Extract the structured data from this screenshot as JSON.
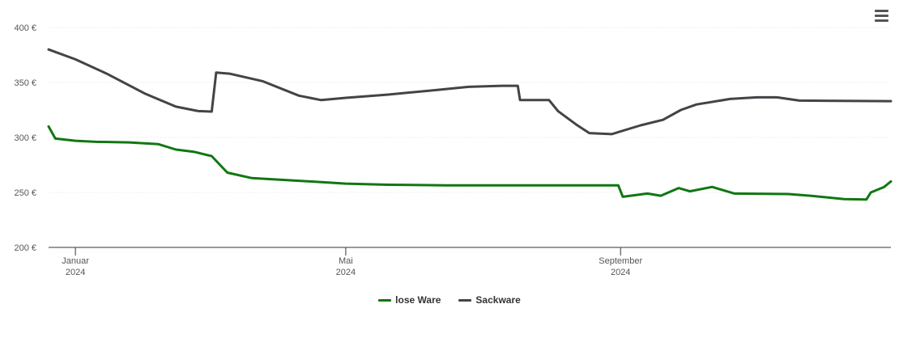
{
  "chart_data": {
    "type": "line",
    "y_ticks": [
      "200 €",
      "250 €",
      "300 €",
      "350 €",
      "400 €"
    ],
    "ylim": [
      200,
      400
    ],
    "x_ticks": [
      {
        "month": "Januar",
        "year": "2024",
        "date": "2024-01-01"
      },
      {
        "month": "Mai",
        "year": "2024",
        "date": "2024-05-01"
      },
      {
        "month": "September",
        "year": "2024",
        "date": "2024-09-01"
      }
    ],
    "xlim": [
      "2023-12-20",
      "2024-12-31"
    ],
    "grid": true,
    "legend_position": "bottom-center",
    "series": [
      {
        "name": "lose Ware",
        "color": "#117711",
        "points": [
          [
            "2023-12-20",
            310
          ],
          [
            "2023-12-23",
            299
          ],
          [
            "2024-01-01",
            297
          ],
          [
            "2024-01-10",
            296
          ],
          [
            "2024-01-25",
            295.5
          ],
          [
            "2024-02-07",
            294
          ],
          [
            "2024-02-15",
            289
          ],
          [
            "2024-02-23",
            287
          ],
          [
            "2024-03-02",
            283
          ],
          [
            "2024-03-09",
            268
          ],
          [
            "2024-03-20",
            263
          ],
          [
            "2024-04-15",
            260
          ],
          [
            "2024-05-01",
            258
          ],
          [
            "2024-05-20",
            257
          ],
          [
            "2024-06-15",
            256.5
          ],
          [
            "2024-08-31",
            256.5
          ],
          [
            "2024-09-02",
            246
          ],
          [
            "2024-09-13",
            249
          ],
          [
            "2024-09-19",
            247
          ],
          [
            "2024-09-27",
            254
          ],
          [
            "2024-10-02",
            251
          ],
          [
            "2024-10-12",
            255
          ],
          [
            "2024-10-22",
            249
          ],
          [
            "2024-11-15",
            248.5
          ],
          [
            "2024-11-25",
            247
          ],
          [
            "2024-12-10",
            244
          ],
          [
            "2024-12-20",
            243.5
          ],
          [
            "2024-12-22",
            250
          ],
          [
            "2024-12-28",
            255
          ],
          [
            "2024-12-31",
            260
          ]
        ]
      },
      {
        "name": "Sackware",
        "color": "#434348",
        "points": [
          [
            "2023-12-20",
            380
          ],
          [
            "2024-01-01",
            371
          ],
          [
            "2024-01-15",
            358
          ],
          [
            "2024-02-01",
            340
          ],
          [
            "2024-02-15",
            328
          ],
          [
            "2024-02-25",
            324
          ],
          [
            "2024-03-02",
            323.5
          ],
          [
            "2024-03-04",
            359
          ],
          [
            "2024-03-10",
            358
          ],
          [
            "2024-03-25",
            351
          ],
          [
            "2024-04-10",
            338
          ],
          [
            "2024-04-20",
            334
          ],
          [
            "2024-05-01",
            336
          ],
          [
            "2024-05-20",
            339
          ],
          [
            "2024-06-10",
            343
          ],
          [
            "2024-06-25",
            346
          ],
          [
            "2024-07-10",
            347
          ],
          [
            "2024-07-17",
            347
          ],
          [
            "2024-07-18",
            334
          ],
          [
            "2024-07-31",
            334
          ],
          [
            "2024-08-04",
            324
          ],
          [
            "2024-08-12",
            312
          ],
          [
            "2024-08-18",
            304
          ],
          [
            "2024-08-28",
            303
          ],
          [
            "2024-09-10",
            311
          ],
          [
            "2024-09-20",
            316
          ],
          [
            "2024-09-28",
            325
          ],
          [
            "2024-10-05",
            330
          ],
          [
            "2024-10-20",
            335
          ],
          [
            "2024-11-01",
            336.5
          ],
          [
            "2024-11-10",
            336.5
          ],
          [
            "2024-11-20",
            333.5
          ],
          [
            "2024-12-31",
            333
          ]
        ]
      }
    ]
  }
}
